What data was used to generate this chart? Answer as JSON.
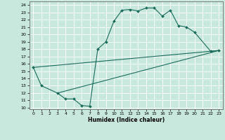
{
  "xlabel": "Humidex (Indice chaleur)",
  "ylabel": "",
  "background_color": "#c8e8de",
  "line_color": "#1a6b5a",
  "xlim": [
    -0.5,
    23.5
  ],
  "ylim": [
    9.8,
    24.5
  ],
  "xticks": [
    0,
    1,
    2,
    3,
    4,
    5,
    6,
    7,
    8,
    9,
    10,
    11,
    12,
    13,
    14,
    15,
    16,
    17,
    18,
    19,
    20,
    21,
    22,
    23
  ],
  "yticks": [
    10,
    11,
    12,
    13,
    14,
    15,
    16,
    17,
    18,
    19,
    20,
    21,
    22,
    23,
    24
  ],
  "curve1_x": [
    0,
    1,
    3,
    4,
    5,
    6,
    7,
    8,
    9,
    10,
    11,
    12,
    13,
    14,
    15,
    16,
    17,
    18,
    19,
    20,
    22,
    23
  ],
  "curve1_y": [
    15.5,
    13,
    12,
    11.2,
    11.2,
    10.3,
    10.2,
    18,
    19,
    21.8,
    23.3,
    23.4,
    23.2,
    23.6,
    23.6,
    22.5,
    23.3,
    21.2,
    21,
    20.3,
    17.7,
    17.8
  ],
  "curve2_x": [
    0,
    23
  ],
  "curve2_y": [
    15.5,
    17.8
  ],
  "curve3_x": [
    3,
    23
  ],
  "curve3_y": [
    12,
    17.8
  ]
}
